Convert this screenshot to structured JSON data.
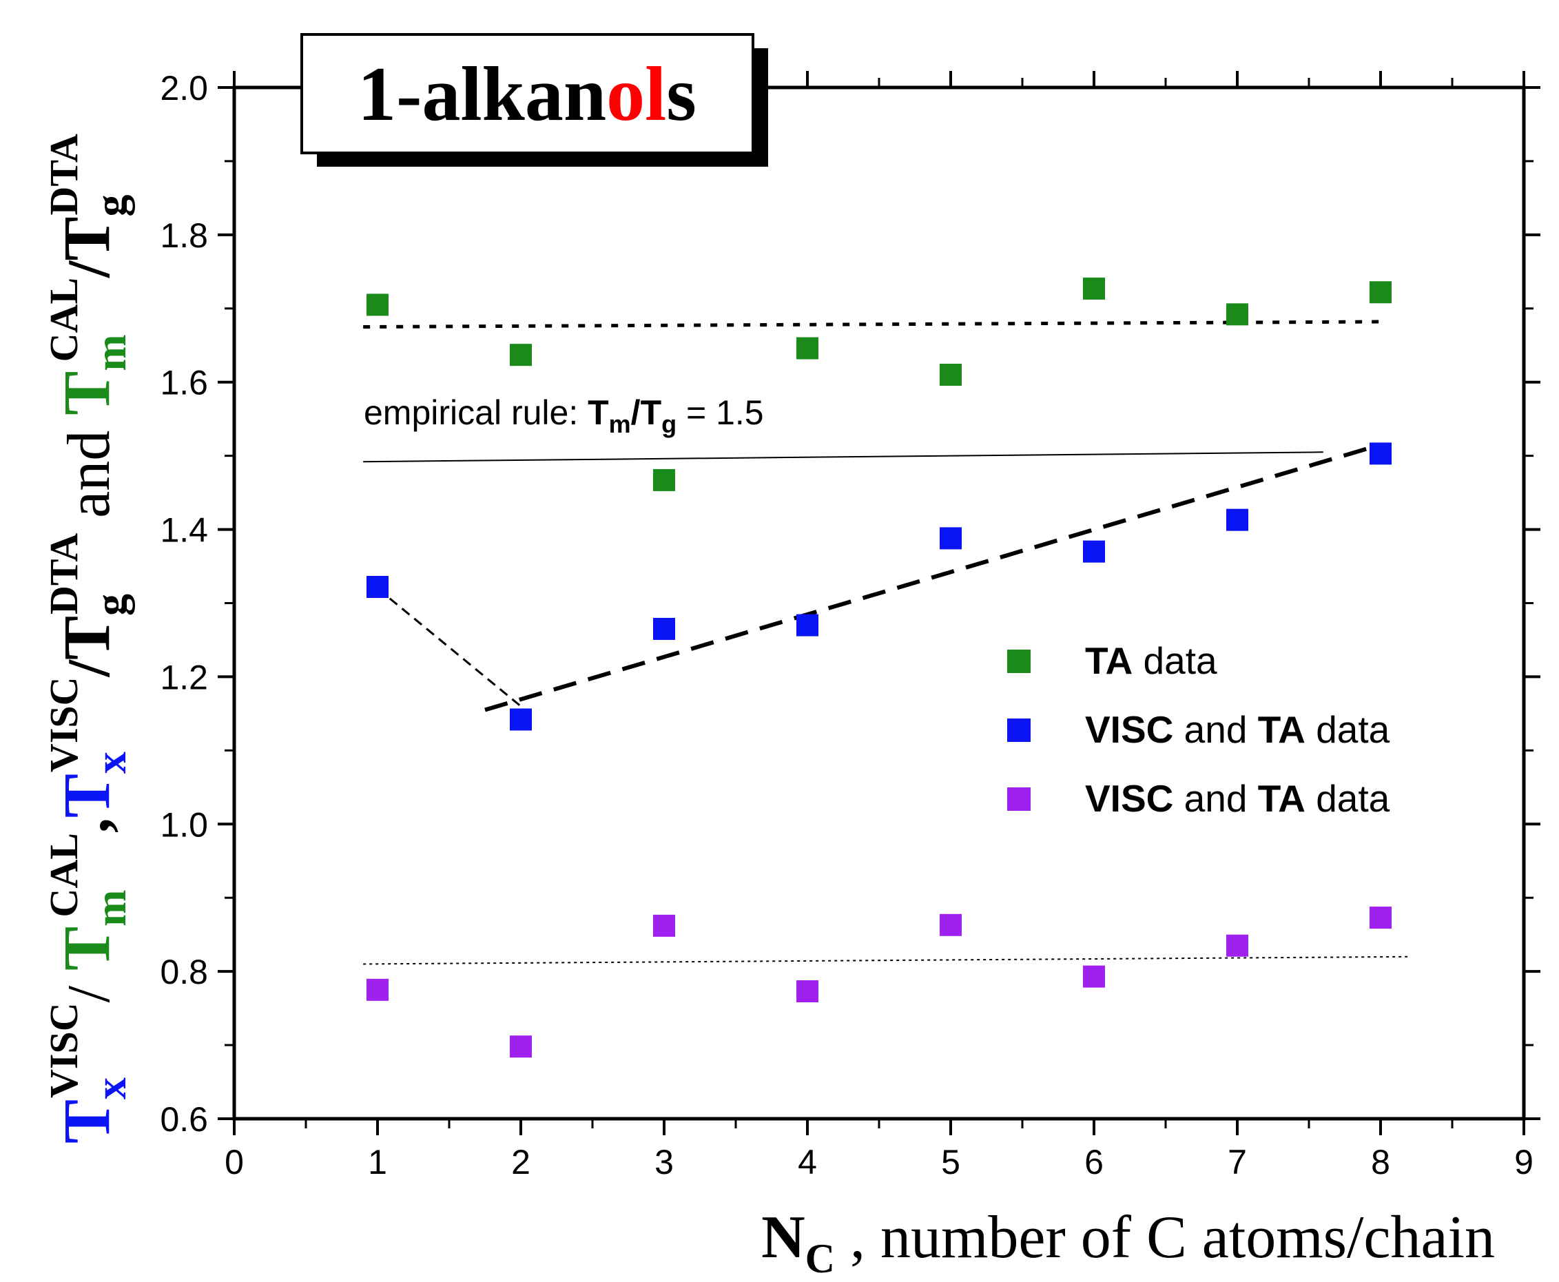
{
  "chart_data": {
    "type": "scatter",
    "title_box": {
      "prefix": "1-alkan",
      "highlight": "ol",
      "suffix": "s",
      "highlight_color": "#ff0000"
    },
    "xlabel": {
      "main": "N",
      "sub": "C",
      "rest": " , number of C atoms/chain"
    },
    "ylabel": {
      "p1": "T",
      "p1_sub": "x",
      "p1_sup": "VISC",
      "sep1": "/ ",
      "p2": "T",
      "p2_sub": "m",
      "p2_sup": "CAL",
      "sep2": ",",
      "p3": "T",
      "p3_sub": "x",
      "p3_sup": "VISC",
      "sep3": "/",
      "p4": "T",
      "p4_sub": "g",
      "p4_sup": "DTA",
      "mid": " and ",
      "p5": "T",
      "p5_sub": "m",
      "p5_sup": "CAL",
      "sep5": "/",
      "p6": "T",
      "p6_sub": "g",
      "p6_sup": "DTA"
    },
    "colors": {
      "ta": "#1a8a1a",
      "visc": "#0b14f5",
      "purple": "#a020f0",
      "blue_label": "#0b14f5",
      "green_label": "#1a8a1a"
    },
    "xlim": [
      0,
      9
    ],
    "ylim": [
      0.6,
      2.0
    ],
    "xticks": [
      "0",
      "1",
      "2",
      "3",
      "4",
      "5",
      "6",
      "7",
      "8",
      "9"
    ],
    "yticks": [
      "0.6",
      "0.8",
      "1.0",
      "1.2",
      "1.4",
      "1.6",
      "1.8",
      "2.0"
    ],
    "series": [
      {
        "name": "TA data",
        "name_bold": "TA",
        "name_rest": " data",
        "color": "#1a8a1a",
        "x": [
          1,
          2,
          3,
          4,
          5,
          6,
          7,
          8
        ],
        "y": [
          1.705,
          1.637,
          1.467,
          1.646,
          1.61,
          1.727,
          1.692,
          1.722
        ]
      },
      {
        "name": "VISC and TA data",
        "name_bold": "VISC",
        "name_mid": " and ",
        "name_bold2": "TA",
        "name_rest": " data",
        "color": "#0b14f5",
        "x": [
          1,
          2,
          3,
          4,
          5,
          6,
          7,
          8
        ],
        "y": [
          1.322,
          1.142,
          1.265,
          1.27,
          1.388,
          1.37,
          1.413,
          1.503
        ]
      },
      {
        "name": "VISC and TA data",
        "name_bold": "VISC",
        "name_mid": " and ",
        "name_bold2": "TA",
        "name_rest": " data",
        "color": "#a020f0",
        "x": [
          1,
          2,
          3,
          4,
          5,
          6,
          7,
          8
        ],
        "y": [
          0.775,
          0.698,
          0.862,
          0.773,
          0.863,
          0.793,
          0.835,
          0.873
        ]
      }
    ],
    "fit_lines": [
      {
        "name": "ta-fit-dotted",
        "style": "dotted",
        "x": [
          0.9,
          8.0
        ],
        "y": [
          1.675,
          1.682
        ]
      },
      {
        "name": "empirical-rule-line",
        "style": "solid-thin",
        "x": [
          0.9,
          7.6
        ],
        "y": [
          1.492,
          1.505
        ]
      },
      {
        "name": "visc-fit-dashed-long",
        "style": "dashed",
        "x": [
          1.75,
          8.0
        ],
        "y": [
          1.155,
          1.515
        ]
      },
      {
        "name": "visc-fit-dashed-short",
        "style": "dashed-thin",
        "x": [
          1.0,
          2.0
        ],
        "y": [
          1.32,
          1.16
        ]
      },
      {
        "name": "purple-fit-dotted",
        "style": "dotted-thin",
        "x": [
          0.9,
          8.2
        ],
        "y": [
          0.81,
          0.82
        ]
      }
    ],
    "annotation": {
      "prefix": "empirical rule: ",
      "T1": "T",
      "sub1": "m",
      "slash": "/",
      "T2": "T",
      "sub2": "g",
      "suffix": " = 1.5"
    }
  }
}
